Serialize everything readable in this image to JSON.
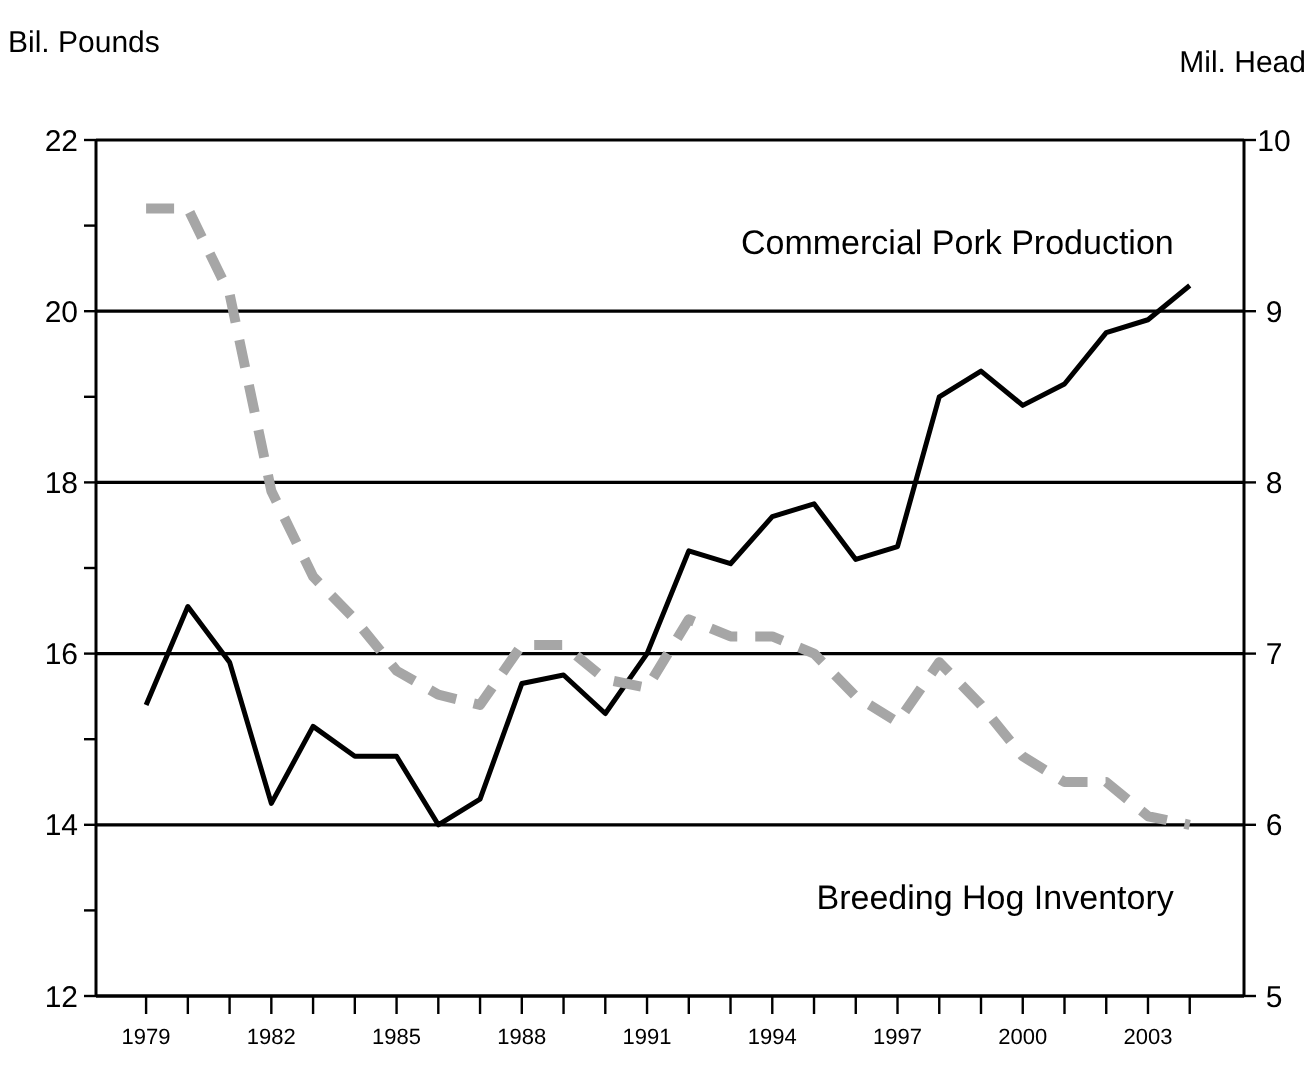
{
  "chart_data": {
    "type": "line",
    "ylabel": "Bil. Pounds",
    "y2label": "Mil. Head",
    "x": [
      1979,
      1980,
      1981,
      1982,
      1983,
      1984,
      1985,
      1986,
      1987,
      1988,
      1989,
      1990,
      1991,
      1992,
      1993,
      1994,
      1995,
      1996,
      1997,
      1998,
      1999,
      2000,
      2001,
      2002,
      2003,
      2004
    ],
    "series": [
      {
        "name": "Commercial Pork Production",
        "color": "#000000",
        "line_style": "solid",
        "values": [
          15.4,
          16.55,
          15.9,
          14.25,
          15.15,
          14.8,
          14.8,
          14.0,
          14.3,
          15.65,
          15.75,
          15.3,
          16.0,
          17.2,
          17.05,
          17.6,
          17.75,
          17.1,
          17.25,
          19.0,
          19.3,
          18.9,
          19.15,
          19.75,
          19.9,
          20.3
        ]
      },
      {
        "name": "Breeding Hog Inventory",
        "color": "#a6a6a6",
        "line_style": "dashed",
        "axis": "y2",
        "values": [
          9.6,
          9.6,
          9.1,
          7.95,
          7.45,
          7.2,
          6.9,
          6.76,
          6.7,
          7.05,
          7.05,
          6.85,
          6.8,
          7.2,
          7.1,
          7.1,
          7.0,
          6.75,
          6.6,
          6.95,
          6.7,
          6.4,
          6.25,
          6.25,
          6.05,
          6.0
        ]
      }
    ],
    "xlim": [
      1977.8,
      2005.3
    ],
    "xticks": [
      1979,
      {
        "value": 1980,
        "label": null
      },
      {
        "value": 1981,
        "label": null
      },
      1982,
      {
        "value": 1983,
        "label": null
      },
      {
        "value": 1984,
        "label": null
      },
      1985,
      {
        "value": 1986,
        "label": null
      },
      {
        "value": 1987,
        "label": null
      },
      1988,
      {
        "value": 1989,
        "label": null
      },
      {
        "value": 1990,
        "label": null
      },
      1991,
      {
        "value": 1992,
        "label": null
      },
      {
        "value": 1993,
        "label": null
      },
      1994,
      {
        "value": 1995,
        "label": null
      },
      {
        "value": 1996,
        "label": null
      },
      1997,
      {
        "value": 1998,
        "label": null
      },
      {
        "value": 1999,
        "label": null
      },
      2000,
      {
        "value": 2001,
        "label": null
      },
      {
        "value": 2002,
        "label": null
      },
      2003,
      {
        "value": 2004,
        "label": null
      }
    ],
    "ylim": [
      12,
      22
    ],
    "yticks": [
      12,
      {
        "value": 13,
        "label": null
      },
      14,
      {
        "value": 15,
        "label": null
      },
      16,
      {
        "value": 17,
        "label": null
      },
      18,
      {
        "value": 19,
        "label": null
      },
      20,
      {
        "value": 21,
        "label": null
      },
      22
    ],
    "y2lim": [
      5,
      10
    ],
    "y2ticks": [
      5,
      6,
      7,
      8,
      9,
      10
    ],
    "grid": "y",
    "marker": "none"
  }
}
